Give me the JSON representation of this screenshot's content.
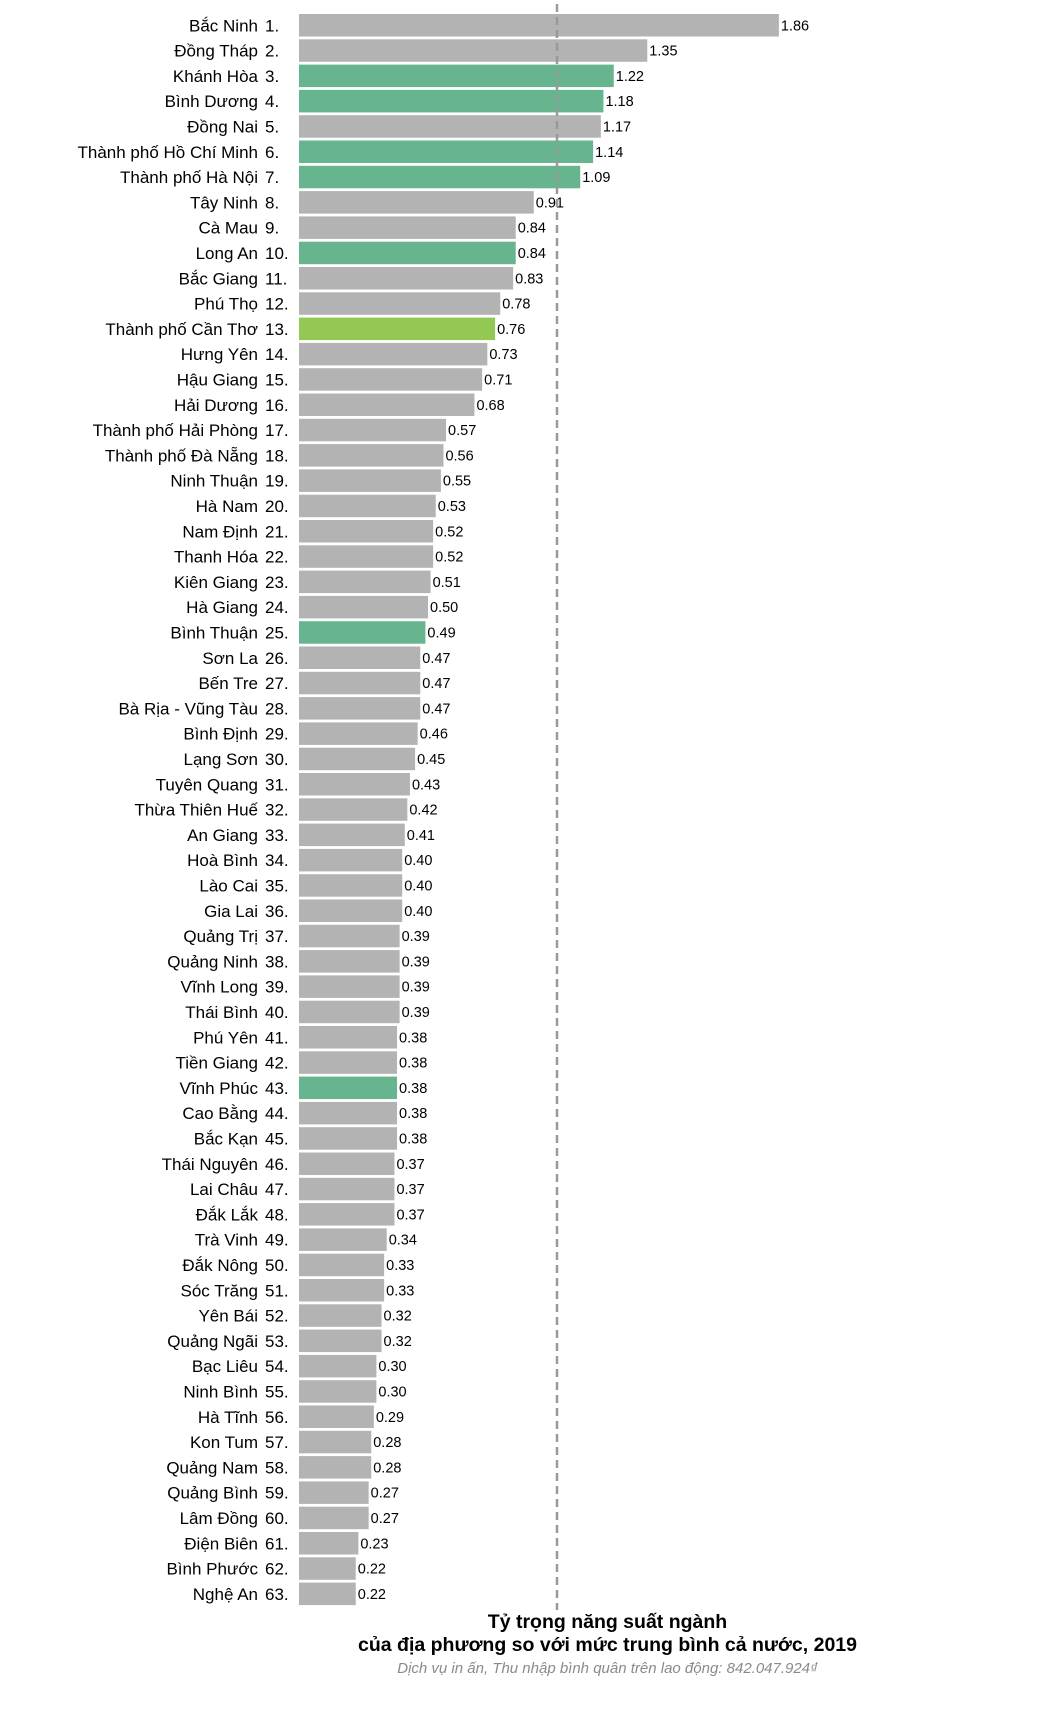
{
  "chart_data": {
    "type": "bar",
    "orientation": "horizontal",
    "title_line1": "Tỷ trọng năng suất ngành",
    "title_line2": "của địa phương so với mức trung bình cả nước, 2019",
    "subtitle": "Dịch vụ in ấn, Thu nhập bình quân trên lao động: 842.047.924₫",
    "reference_line": 1.0,
    "xlim": [
      0,
      1.86
    ],
    "colors": {
      "default": "#b3b3b3",
      "highlight": "#66b58f",
      "selected": "#93c952",
      "reference": "#999999"
    },
    "rows": [
      {
        "rank": "1.",
        "name": "Bắc Ninh",
        "value": 1.86,
        "label": "1.86",
        "group": "default"
      },
      {
        "rank": "2.",
        "name": "Đồng Tháp",
        "value": 1.35,
        "label": "1.35",
        "group": "default"
      },
      {
        "rank": "3.",
        "name": "Khánh Hòa",
        "value": 1.22,
        "label": "1.22",
        "group": "highlight"
      },
      {
        "rank": "4.",
        "name": "Bình Dương",
        "value": 1.18,
        "label": "1.18",
        "group": "highlight"
      },
      {
        "rank": "5.",
        "name": "Đồng Nai",
        "value": 1.17,
        "label": "1.17",
        "group": "default"
      },
      {
        "rank": "6.",
        "name": "Thành phố Hồ Chí Minh",
        "value": 1.14,
        "label": "1.14",
        "group": "highlight"
      },
      {
        "rank": "7.",
        "name": "Thành phố Hà Nội",
        "value": 1.09,
        "label": "1.09",
        "group": "highlight"
      },
      {
        "rank": "8.",
        "name": "Tây Ninh",
        "value": 0.91,
        "label": "0.91",
        "group": "default"
      },
      {
        "rank": "9.",
        "name": "Cà Mau",
        "value": 0.84,
        "label": "0.84",
        "group": "default"
      },
      {
        "rank": "10.",
        "name": "Long An",
        "value": 0.84,
        "label": "0.84",
        "group": "highlight"
      },
      {
        "rank": "11.",
        "name": "Bắc Giang",
        "value": 0.83,
        "label": "0.83",
        "group": "default"
      },
      {
        "rank": "12.",
        "name": "Phú Thọ",
        "value": 0.78,
        "label": "0.78",
        "group": "default"
      },
      {
        "rank": "13.",
        "name": "Thành phố Cần Thơ",
        "value": 0.76,
        "label": "0.76",
        "group": "selected"
      },
      {
        "rank": "14.",
        "name": "Hưng Yên",
        "value": 0.73,
        "label": "0.73",
        "group": "default"
      },
      {
        "rank": "15.",
        "name": "Hậu Giang",
        "value": 0.71,
        "label": "0.71",
        "group": "default"
      },
      {
        "rank": "16.",
        "name": "Hải Dương",
        "value": 0.68,
        "label": "0.68",
        "group": "default"
      },
      {
        "rank": "17.",
        "name": "Thành phố Hải Phòng",
        "value": 0.57,
        "label": "0.57",
        "group": "default"
      },
      {
        "rank": "18.",
        "name": "Thành phố Đà Nẵng",
        "value": 0.56,
        "label": "0.56",
        "group": "default"
      },
      {
        "rank": "19.",
        "name": "Ninh Thuận",
        "value": 0.55,
        "label": "0.55",
        "group": "default"
      },
      {
        "rank": "20.",
        "name": "Hà Nam",
        "value": 0.53,
        "label": "0.53",
        "group": "default"
      },
      {
        "rank": "21.",
        "name": "Nam Định",
        "value": 0.52,
        "label": "0.52",
        "group": "default"
      },
      {
        "rank": "22.",
        "name": "Thanh Hóa",
        "value": 0.52,
        "label": "0.52",
        "group": "default"
      },
      {
        "rank": "23.",
        "name": "Kiên Giang",
        "value": 0.51,
        "label": "0.51",
        "group": "default"
      },
      {
        "rank": "24.",
        "name": "Hà Giang",
        "value": 0.5,
        "label": "0.50",
        "group": "default"
      },
      {
        "rank": "25.",
        "name": "Bình Thuận",
        "value": 0.49,
        "label": "0.49",
        "group": "highlight"
      },
      {
        "rank": "26.",
        "name": "Sơn La",
        "value": 0.47,
        "label": "0.47",
        "group": "default"
      },
      {
        "rank": "27.",
        "name": "Bến Tre",
        "value": 0.47,
        "label": "0.47",
        "group": "default"
      },
      {
        "rank": "28.",
        "name": "Bà Rịa - Vũng Tàu",
        "value": 0.47,
        "label": "0.47",
        "group": "default"
      },
      {
        "rank": "29.",
        "name": "Bình Định",
        "value": 0.46,
        "label": "0.46",
        "group": "default"
      },
      {
        "rank": "30.",
        "name": "Lạng Sơn",
        "value": 0.45,
        "label": "0.45",
        "group": "default"
      },
      {
        "rank": "31.",
        "name": "Tuyên Quang",
        "value": 0.43,
        "label": "0.43",
        "group": "default"
      },
      {
        "rank": "32.",
        "name": "Thừa Thiên Huế",
        "value": 0.42,
        "label": "0.42",
        "group": "default"
      },
      {
        "rank": "33.",
        "name": "An Giang",
        "value": 0.41,
        "label": "0.41",
        "group": "default"
      },
      {
        "rank": "34.",
        "name": "Hoà Bình",
        "value": 0.4,
        "label": "0.40",
        "group": "default"
      },
      {
        "rank": "35.",
        "name": "Lào Cai",
        "value": 0.4,
        "label": "0.40",
        "group": "default"
      },
      {
        "rank": "36.",
        "name": "Gia Lai",
        "value": 0.4,
        "label": "0.40",
        "group": "default"
      },
      {
        "rank": "37.",
        "name": "Quảng Trị",
        "value": 0.39,
        "label": "0.39",
        "group": "default"
      },
      {
        "rank": "38.",
        "name": "Quảng Ninh",
        "value": 0.39,
        "label": "0.39",
        "group": "default"
      },
      {
        "rank": "39.",
        "name": "Vĩnh Long",
        "value": 0.39,
        "label": "0.39",
        "group": "default"
      },
      {
        "rank": "40.",
        "name": "Thái Bình",
        "value": 0.39,
        "label": "0.39",
        "group": "default"
      },
      {
        "rank": "41.",
        "name": "Phú Yên",
        "value": 0.38,
        "label": "0.38",
        "group": "default"
      },
      {
        "rank": "42.",
        "name": "Tiền Giang",
        "value": 0.38,
        "label": "0.38",
        "group": "default"
      },
      {
        "rank": "43.",
        "name": "Vĩnh Phúc",
        "value": 0.38,
        "label": "0.38",
        "group": "highlight"
      },
      {
        "rank": "44.",
        "name": "Cao Bằng",
        "value": 0.38,
        "label": "0.38",
        "group": "default"
      },
      {
        "rank": "45.",
        "name": "Bắc Kạn",
        "value": 0.38,
        "label": "0.38",
        "group": "default"
      },
      {
        "rank": "46.",
        "name": "Thái Nguyên",
        "value": 0.37,
        "label": "0.37",
        "group": "default"
      },
      {
        "rank": "47.",
        "name": "Lai Châu",
        "value": 0.37,
        "label": "0.37",
        "group": "default"
      },
      {
        "rank": "48.",
        "name": "Đắk Lắk",
        "value": 0.37,
        "label": "0.37",
        "group": "default"
      },
      {
        "rank": "49.",
        "name": "Trà Vinh",
        "value": 0.34,
        "label": "0.34",
        "group": "default"
      },
      {
        "rank": "50.",
        "name": "Đắk Nông",
        "value": 0.33,
        "label": "0.33",
        "group": "default"
      },
      {
        "rank": "51.",
        "name": "Sóc Trăng",
        "value": 0.33,
        "label": "0.33",
        "group": "default"
      },
      {
        "rank": "52.",
        "name": "Yên Bái",
        "value": 0.32,
        "label": "0.32",
        "group": "default"
      },
      {
        "rank": "53.",
        "name": "Quảng Ngãi",
        "value": 0.32,
        "label": "0.32",
        "group": "default"
      },
      {
        "rank": "54.",
        "name": "Bạc Liêu",
        "value": 0.3,
        "label": "0.30",
        "group": "default"
      },
      {
        "rank": "55.",
        "name": "Ninh Bình",
        "value": 0.3,
        "label": "0.30",
        "group": "default"
      },
      {
        "rank": "56.",
        "name": "Hà Tĩnh",
        "value": 0.29,
        "label": "0.29",
        "group": "default"
      },
      {
        "rank": "57.",
        "name": "Kon Tum",
        "value": 0.28,
        "label": "0.28",
        "group": "default"
      },
      {
        "rank": "58.",
        "name": "Quảng Nam",
        "value": 0.28,
        "label": "0.28",
        "group": "default"
      },
      {
        "rank": "59.",
        "name": "Quảng Bình",
        "value": 0.27,
        "label": "0.27",
        "group": "default"
      },
      {
        "rank": "60.",
        "name": "Lâm Đồng",
        "value": 0.27,
        "label": "0.27",
        "group": "default"
      },
      {
        "rank": "61.",
        "name": "Điện Biên",
        "value": 0.23,
        "label": "0.23",
        "group": "default"
      },
      {
        "rank": "62.",
        "name": "Bình Phước",
        "value": 0.22,
        "label": "0.22",
        "group": "default"
      },
      {
        "rank": "63.",
        "name": "Nghệ An",
        "value": 0.22,
        "label": "0.22",
        "group": "default"
      }
    ]
  }
}
